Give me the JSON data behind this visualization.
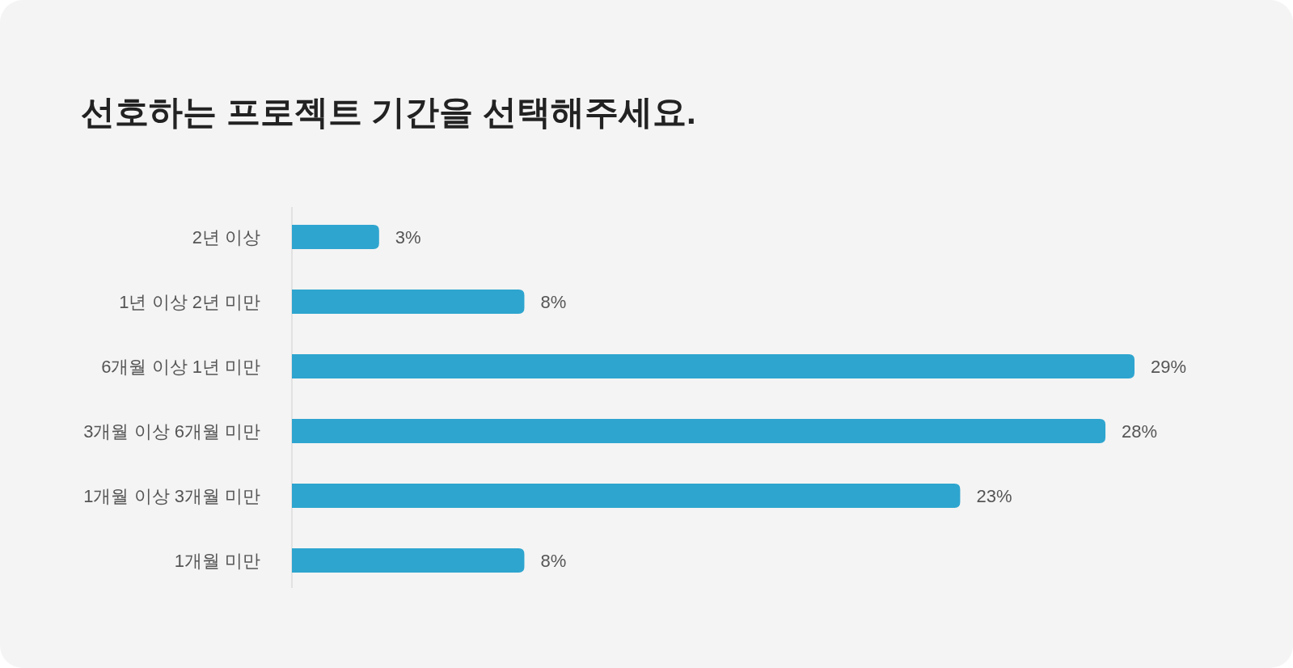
{
  "chart_data": {
    "type": "bar",
    "orientation": "horizontal",
    "title": "선호하는 프로젝트 기간을 선택해주세요.",
    "categories": [
      "2년 이상",
      "1년 이상 2년 미만",
      "6개월 이상 1년 미만",
      "3개월 이상 6개월 미만",
      "1개월 이상 3개월 미만",
      "1개월 미만"
    ],
    "values": [
      3,
      8,
      29,
      28,
      23,
      8
    ],
    "value_labels": [
      "3%",
      "8%",
      "29%",
      "28%",
      "23%",
      "8%"
    ],
    "color": "#2ea5cf"
  }
}
